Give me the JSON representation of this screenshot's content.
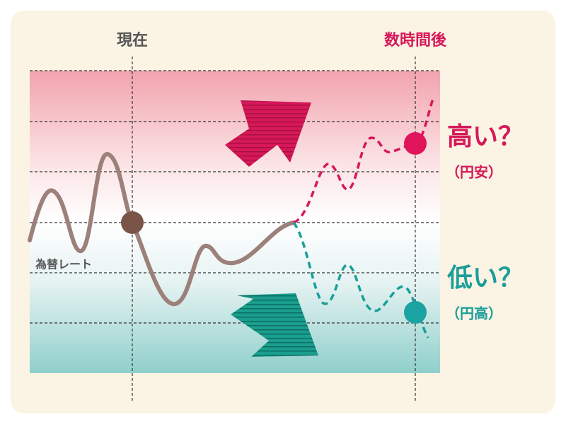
{
  "labels": {
    "now": "現在",
    "later": "数時間後",
    "rate": "為替レート",
    "high": "高い？",
    "high_note": "（円安）",
    "low": "低い？",
    "low_note": "（円高）"
  }
}
